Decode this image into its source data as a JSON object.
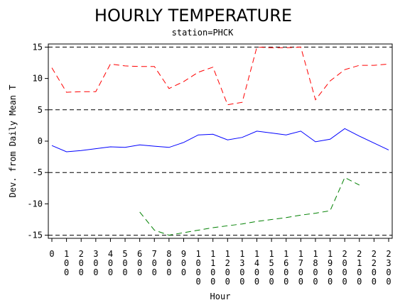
{
  "chart_data": {
    "type": "line",
    "title": "HOURLY TEMPERATURE",
    "subtitle": "station=PHCK",
    "xlabel": "Hour",
    "ylabel": "Dev. from Daily Mean T",
    "xlim": [
      0,
      2300
    ],
    "ylim": [
      -15.5,
      15.5
    ],
    "x_ticks": [
      0,
      100,
      200,
      300,
      400,
      500,
      600,
      700,
      800,
      900,
      1000,
      1100,
      1200,
      1300,
      1400,
      1500,
      1600,
      1700,
      1800,
      1900,
      2000,
      2100,
      2200,
      2300
    ],
    "y_ticks": [
      -15,
      -10,
      -5,
      0,
      5,
      10,
      15
    ],
    "reference_lines": [
      -15,
      -5,
      5,
      15
    ],
    "grid": false,
    "series": [
      {
        "color": "#ff0000",
        "style": "dashed",
        "x": [
          0,
          100,
          200,
          300,
          400,
          500,
          600,
          700,
          800,
          900,
          1000,
          1100,
          1200,
          1300,
          1400,
          1500,
          1600,
          1700,
          1800,
          1900,
          2000,
          2100,
          2200,
          2300
        ],
        "values": [
          11.7,
          7.8,
          7.9,
          7.9,
          12.3,
          12.0,
          11.9,
          11.9,
          8.4,
          9.5,
          11.0,
          11.8,
          5.8,
          6.2,
          15.0,
          14.9,
          14.9,
          15.0,
          6.6,
          9.6,
          11.4,
          12.1,
          12.1,
          12.3
        ]
      },
      {
        "color": "#0000ff",
        "style": "solid",
        "x": [
          0,
          100,
          200,
          300,
          400,
          500,
          600,
          700,
          800,
          900,
          1000,
          1100,
          1200,
          1300,
          1400,
          1500,
          1600,
          1700,
          1800,
          1900,
          2000,
          2100,
          2200,
          2300
        ],
        "values": [
          -0.7,
          -1.7,
          -1.5,
          -1.2,
          -0.9,
          -1.0,
          -0.6,
          -0.8,
          -1.0,
          -0.2,
          1.0,
          1.1,
          0.2,
          0.6,
          1.6,
          1.3,
          1.0,
          1.6,
          -0.1,
          0.3,
          2.0,
          0.8,
          -0.3,
          -1.4
        ]
      },
      {
        "color": "#008000",
        "style": "dashed",
        "x": [
          600,
          700,
          800,
          900,
          1000,
          1100,
          1200,
          1300,
          1400,
          1500,
          1600,
          1700,
          1800,
          1900,
          2000,
          2100
        ],
        "values": [
          -11.3,
          -14.2,
          -15.0,
          -14.6,
          -14.2,
          -13.8,
          -13.5,
          -13.2,
          -12.8,
          -12.5,
          -12.2,
          -11.8,
          -11.5,
          -11.1,
          -5.8,
          -7.0
        ]
      }
    ]
  }
}
